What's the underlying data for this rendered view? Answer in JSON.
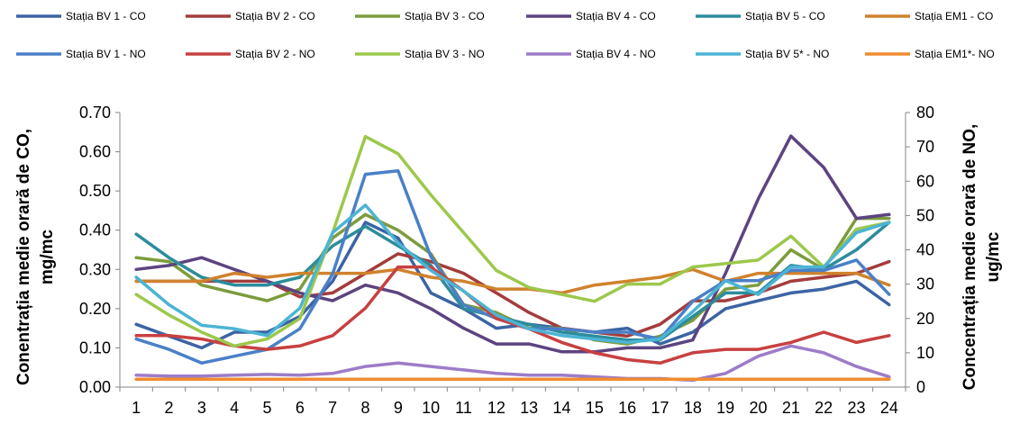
{
  "chart_data": {
    "type": "line",
    "title": "",
    "xlabel": "",
    "ylabel_left": "Conentrația medie orară de CO, mg/mc",
    "ylabel_left_lines": [
      "Conentrația medie orară de CO,",
      "mg/mc"
    ],
    "ylabel_right": "Concentrația medie orară de NO, ug/mc",
    "ylabel_right_lines": [
      "Concentrația medie orară de NO,",
      "ug/mc"
    ],
    "x": [
      1,
      2,
      3,
      4,
      5,
      6,
      7,
      8,
      9,
      10,
      11,
      12,
      13,
      14,
      15,
      16,
      17,
      18,
      19,
      20,
      21,
      22,
      23,
      24
    ],
    "ylim_left": [
      0,
      0.7
    ],
    "ylim_right": [
      0,
      80
    ],
    "yticks_left": [
      "0.00",
      "0.10",
      "0.20",
      "0.30",
      "0.40",
      "0.50",
      "0.60",
      "0.70"
    ],
    "yticks_right": [
      "0",
      "10",
      "20",
      "30",
      "40",
      "50",
      "60",
      "70",
      "80"
    ],
    "grid": false,
    "legend_position": "top",
    "series": [
      {
        "name": "Stația BV 1 - CO",
        "axis": "left",
        "color": "#3c64a4",
        "values": [
          0.16,
          0.13,
          0.1,
          0.14,
          0.14,
          0.18,
          0.27,
          0.42,
          0.38,
          0.24,
          0.2,
          0.15,
          0.16,
          0.15,
          0.14,
          0.15,
          0.11,
          0.14,
          0.2,
          0.22,
          0.24,
          0.25,
          0.27,
          0.21
        ]
      },
      {
        "name": "Stația BV 2 - CO",
        "axis": "left",
        "color": "#a43c3c",
        "values": [
          0.27,
          0.27,
          0.27,
          0.27,
          0.27,
          0.23,
          0.24,
          0.29,
          0.34,
          0.32,
          0.29,
          0.24,
          0.19,
          0.15,
          0.14,
          0.13,
          0.16,
          0.22,
          0.22,
          0.24,
          0.27,
          0.28,
          0.29,
          0.32
        ]
      },
      {
        "name": "Stația BV 3 - CO",
        "axis": "left",
        "color": "#7c9c3c",
        "values": [
          0.33,
          0.32,
          0.26,
          0.24,
          0.22,
          0.25,
          0.38,
          0.44,
          0.4,
          0.34,
          0.21,
          0.19,
          0.15,
          0.15,
          0.12,
          0.11,
          0.13,
          0.17,
          0.25,
          0.26,
          0.35,
          0.3,
          0.43,
          0.43
        ]
      },
      {
        "name": "Stația BV 4 - CO",
        "axis": "left",
        "color": "#5c4480",
        "values": [
          0.3,
          0.31,
          0.33,
          0.3,
          0.27,
          0.24,
          0.22,
          0.26,
          0.24,
          0.2,
          0.15,
          0.11,
          0.11,
          0.09,
          0.09,
          0.1,
          0.1,
          0.12,
          0.29,
          0.48,
          0.64,
          0.56,
          0.43,
          0.44
        ]
      },
      {
        "name": "Stația BV 5 - CO",
        "axis": "left",
        "color": "#2c8c9c",
        "values": [
          0.39,
          0.33,
          0.28,
          0.26,
          0.26,
          0.28,
          0.36,
          0.41,
          0.36,
          0.31,
          0.2,
          0.18,
          0.16,
          0.14,
          0.13,
          0.12,
          0.12,
          0.18,
          0.24,
          0.24,
          0.31,
          0.3,
          0.35,
          0.42
        ]
      },
      {
        "name": "Stația EM1 - CO",
        "axis": "left",
        "color": "#d0822c",
        "values": [
          0.27,
          0.27,
          0.27,
          0.29,
          0.28,
          0.29,
          0.29,
          0.29,
          0.3,
          0.28,
          0.27,
          0.25,
          0.25,
          0.24,
          0.26,
          0.27,
          0.28,
          0.3,
          0.27,
          0.29,
          0.29,
          0.29,
          0.29,
          0.26
        ]
      },
      {
        "name": "Stația BV 1 - NO",
        "axis": "right",
        "color": "#4a80c8",
        "values": [
          14,
          11,
          7,
          9,
          11,
          17,
          33,
          62,
          63,
          38,
          24,
          20,
          17,
          17,
          16,
          16,
          14,
          25,
          31,
          31,
          34,
          34,
          37,
          27
        ]
      },
      {
        "name": "Stația BV 2 - NO",
        "axis": "right",
        "color": "#c84040",
        "values": [
          15,
          15,
          14,
          12,
          11,
          12,
          15,
          23,
          35,
          35,
          28,
          20,
          17,
          13,
          10,
          8,
          7,
          10,
          11,
          11,
          13,
          16,
          13,
          15
        ]
      },
      {
        "name": "Stația BV 3 - NO",
        "axis": "right",
        "color": "#9cc84c",
        "values": [
          27,
          21,
          16,
          12,
          14,
          20,
          45,
          73,
          68,
          56,
          45,
          34,
          29,
          27,
          25,
          30,
          30,
          35,
          36,
          37,
          44,
          35,
          46,
          48
        ]
      },
      {
        "name": "Stația BV 4 - NO",
        "axis": "right",
        "color": "#9c7cc8",
        "values": [
          3.5,
          3.2,
          3.2,
          3.5,
          3.7,
          3.5,
          4,
          6,
          7,
          6,
          5,
          4,
          3.5,
          3.5,
          3,
          2.5,
          2.5,
          2,
          4,
          9,
          12,
          10,
          6,
          3
        ]
      },
      {
        "name": "Stația BV 5* - NO",
        "axis": "right",
        "color": "#4cb4d4",
        "values": [
          32,
          24,
          18,
          17,
          15,
          23,
          45,
          53,
          42,
          34,
          28,
          21,
          17,
          15,
          14,
          13,
          14,
          22,
          31,
          27,
          35,
          35,
          45,
          48
        ]
      },
      {
        "name": "Stația EM1*- NO",
        "axis": "right",
        "color": "#f08c30",
        "values": [
          2.3,
          2.3,
          2.3,
          2.3,
          2.3,
          2.3,
          2.3,
          2.3,
          2.3,
          2.3,
          2.3,
          2.3,
          2.3,
          2.3,
          2.3,
          2.3,
          2.3,
          2.3,
          2.3,
          2.3,
          2.3,
          2.3,
          2.3,
          2.3
        ]
      }
    ]
  }
}
